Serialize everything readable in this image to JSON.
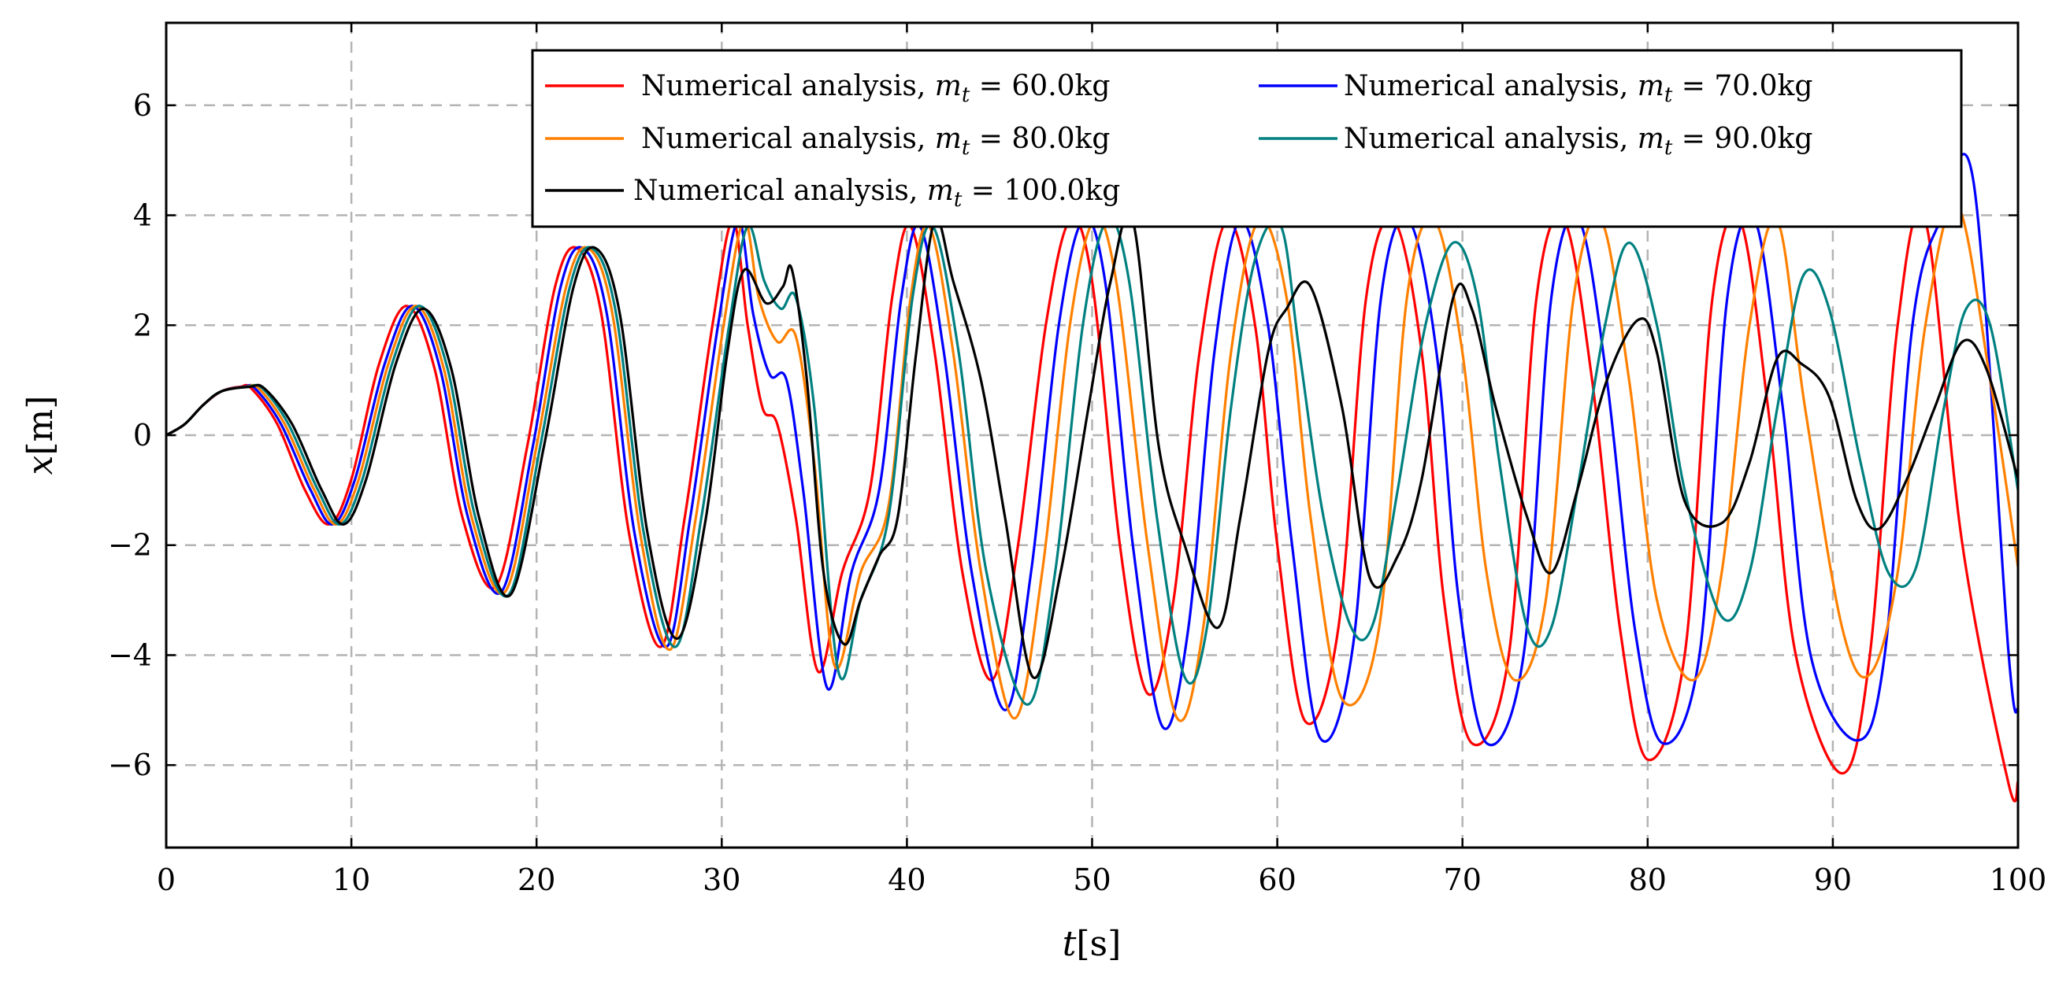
{
  "chart_data": {
    "type": "line",
    "title": "",
    "xlabel": {
      "var": "t",
      "unit": "[s]"
    },
    "ylabel": {
      "var": "x",
      "unit": "[m]"
    },
    "xlim": [
      0,
      100
    ],
    "ylim": [
      -7.5,
      7.5
    ],
    "grid": true,
    "legend_position": "top-right",
    "xticks": [
      0,
      10,
      20,
      30,
      40,
      50,
      60,
      70,
      80,
      90,
      100
    ],
    "xtick_labels": [
      "0",
      "10",
      "20",
      "30",
      "40",
      "50",
      "60",
      "70",
      "80",
      "90",
      "100"
    ],
    "yticks": [
      -6,
      -4,
      -2,
      0,
      2,
      4,
      6
    ],
    "ytick_labels": [
      "−6",
      "−4",
      "−2",
      "0",
      "2",
      "4",
      "6"
    ],
    "series": [
      {
        "name": "Numerical analysis, m_t = 60.0kg",
        "label_prefix": "Numerical analysis, ",
        "label_var": "m",
        "label_sub": "t",
        "label_value": " = 60.0kg",
        "color": "#ff0000",
        "x": [
          0,
          1,
          2,
          3,
          4,
          4.6,
          6,
          7.5,
          8.8,
          10,
          11.5,
          13,
          14.5,
          16,
          17.8,
          19.5,
          21,
          22.2,
          23.5,
          25,
          26.7,
          28,
          29.5,
          30.6,
          31.4,
          32.2,
          33,
          34,
          35.2,
          36.5,
          38,
          39.2,
          40.2,
          41.5,
          43,
          44.6,
          46,
          47.5,
          48.8,
          50,
          51.5,
          53,
          54.4,
          55.8,
          57.3,
          58.8,
          60,
          61.5,
          63.3,
          64.8,
          66.3,
          67.8,
          69,
          70.5,
          72.5,
          74,
          75.5,
          77,
          78.5,
          80,
          82,
          83.5,
          85,
          86.5,
          88,
          90.5,
          92,
          93.5,
          95,
          97,
          99.5,
          100
        ],
        "y": [
          0,
          0.2,
          0.55,
          0.8,
          0.88,
          0.85,
          0.2,
          -1.0,
          -1.62,
          -0.8,
          1.3,
          2.35,
          1.2,
          -1.5,
          -2.75,
          -0.2,
          2.7,
          3.4,
          2.2,
          -1.8,
          -3.85,
          -1.5,
          2.0,
          3.9,
          2.0,
          0.5,
          0.2,
          -1.5,
          -4.3,
          -2.5,
          -1.0,
          2.5,
          3.8,
          1.5,
          -2.5,
          -4.45,
          -2.0,
          2.0,
          3.9,
          2.8,
          -2.0,
          -4.7,
          -3.0,
          1.5,
          3.9,
          2.0,
          -2.0,
          -5.2,
          -3.5,
          2.5,
          3.9,
          1.5,
          -3.0,
          -5.6,
          -4.0,
          2.5,
          3.9,
          1.0,
          -3.5,
          -5.9,
          -4.0,
          2.5,
          3.9,
          0.5,
          -4.0,
          -6.15,
          -4.0,
          2.0,
          3.9,
          -2.0,
          -6.35,
          -6.3
        ]
      },
      {
        "name": "Numerical analysis, m_t = 70.0kg",
        "label_prefix": "Numerical analysis, ",
        "label_var": "m",
        "label_sub": "t",
        "label_value": " = 70.0kg",
        "color": "#0000ff",
        "x": [
          0,
          1,
          2,
          3,
          4.2,
          4.8,
          6.2,
          7.8,
          9,
          10.2,
          11.8,
          13.3,
          14.8,
          16.3,
          18.1,
          19.8,
          21.3,
          22.5,
          23.8,
          25.3,
          27,
          28.3,
          29.8,
          30.9,
          31.7,
          32.6,
          33.5,
          34.4,
          35.7,
          37,
          38.5,
          39.7,
          40.7,
          42,
          43.5,
          45.3,
          46.7,
          48.2,
          49.5,
          50.7,
          52.2,
          53.8,
          55.2,
          56.6,
          58,
          59.5,
          60.8,
          62.3,
          64.1,
          65.6,
          67.1,
          68.6,
          69.8,
          71.3,
          73.3,
          74.8,
          76.3,
          77.8,
          79.3,
          80.8,
          82.8,
          84.3,
          85.8,
          87.3,
          88.8,
          91.3,
          92.8,
          94.3,
          95.8,
          97.6,
          99.5,
          100
        ],
        "y": [
          0,
          0.2,
          0.55,
          0.8,
          0.88,
          0.85,
          0.2,
          -1.0,
          -1.62,
          -0.8,
          1.3,
          2.35,
          1.2,
          -1.5,
          -2.85,
          -0.2,
          2.7,
          3.4,
          2.2,
          -1.8,
          -3.85,
          -1.5,
          2.0,
          3.9,
          2.2,
          1.1,
          1.0,
          -1.0,
          -4.6,
          -2.5,
          -1.0,
          2.5,
          3.8,
          1.5,
          -2.5,
          -5.0,
          -2.5,
          2.0,
          3.9,
          2.8,
          -2.0,
          -5.3,
          -3.5,
          1.5,
          3.9,
          2.0,
          -2.0,
          -5.5,
          -3.8,
          2.5,
          3.9,
          1.5,
          -3.0,
          -5.6,
          -4.0,
          2.5,
          3.9,
          1.0,
          -3.5,
          -5.6,
          -4.0,
          2.5,
          3.9,
          0.5,
          -4.0,
          -5.55,
          -4.0,
          2.0,
          3.9,
          4.6,
          -4.0,
          -5.0
        ]
      },
      {
        "name": "Numerical analysis, m_t = 80.0kg",
        "label_prefix": "Numerical analysis, ",
        "label_var": "m",
        "label_sub": "t",
        "label_value": " = 80.0kg",
        "color": "#ff8000",
        "x": [
          0,
          1,
          2,
          3,
          4.3,
          5,
          6.4,
          8,
          9.2,
          10.4,
          12,
          13.5,
          15,
          16.5,
          18.3,
          20,
          21.6,
          22.8,
          24.1,
          25.6,
          27.2,
          28.6,
          30.1,
          31.2,
          32,
          33,
          34,
          35,
          36.1,
          37.5,
          39,
          40.2,
          41.2,
          42.5,
          44,
          45.8,
          47.3,
          48.8,
          50.1,
          51.3,
          53,
          54.6,
          56,
          57.5,
          59,
          60.5,
          61.8,
          63.5,
          65.5,
          67,
          68.5,
          70,
          71.3,
          72.8,
          74.5,
          76,
          77.5,
          79,
          80.5,
          82.5,
          84,
          85.5,
          87,
          88.5,
          90.5,
          92,
          93.5,
          95,
          96.7,
          98.5,
          100
        ],
        "y": [
          0,
          0.2,
          0.55,
          0.8,
          0.88,
          0.85,
          0.2,
          -1.0,
          -1.62,
          -0.8,
          1.3,
          2.35,
          1.2,
          -1.5,
          -2.85,
          -0.2,
          2.7,
          3.4,
          2.2,
          -1.8,
          -3.9,
          -1.5,
          2.0,
          3.9,
          2.5,
          1.7,
          1.8,
          -0.5,
          -4.2,
          -2.5,
          -1.3,
          2.5,
          3.8,
          1.5,
          -2.5,
          -5.15,
          -2.5,
          2.0,
          3.9,
          2.8,
          -2.0,
          -5.15,
          -3.5,
          1.5,
          3.9,
          2.5,
          -1.5,
          -4.8,
          -3.5,
          2.5,
          3.9,
          1.5,
          -2.5,
          -4.45,
          -3.0,
          2.5,
          3.9,
          1.0,
          -3.0,
          -4.45,
          -2.5,
          2.0,
          3.9,
          0.5,
          -3.5,
          -4.35,
          -2.5,
          2.0,
          4.2,
          1.0,
          -2.4
        ]
      },
      {
        "name": "Numerical analysis, m_t = 90.0kg",
        "label_prefix": "Numerical analysis, ",
        "label_var": "m",
        "label_sub": "t",
        "label_value": " = 90.0kg",
        "color": "#008080",
        "x": [
          0,
          1,
          2,
          3,
          4.4,
          5.2,
          6.6,
          8.2,
          9.4,
          10.6,
          12.2,
          13.7,
          15.2,
          16.7,
          18.5,
          20.2,
          21.8,
          23,
          24.3,
          25.8,
          27.5,
          28.9,
          30.4,
          31.4,
          32.3,
          33.2,
          34,
          35,
          36.3,
          37.5,
          39,
          40.3,
          41.4,
          42.8,
          44.3,
          46.5,
          48,
          49.5,
          50.8,
          52,
          53.5,
          55,
          56.2,
          57.5,
          58.8,
          60.2,
          61.2,
          62.5,
          64,
          65.2,
          66.5,
          68,
          69.5,
          70.8,
          72,
          73.5,
          74.8,
          76.2,
          77.7,
          79,
          80.5,
          82,
          84,
          85.5,
          87,
          88.4,
          89.8,
          91.5,
          93,
          94.5,
          96,
          97.2,
          98.5,
          100
        ],
        "y": [
          0,
          0.2,
          0.55,
          0.8,
          0.88,
          0.85,
          0.2,
          -1.0,
          -1.62,
          -0.8,
          1.3,
          2.35,
          1.2,
          -1.5,
          -2.9,
          -0.2,
          2.7,
          3.4,
          2.2,
          -1.8,
          -3.85,
          -1.5,
          2.0,
          3.8,
          2.8,
          2.3,
          2.5,
          0.5,
          -4.3,
          -3.0,
          -1.5,
          2.5,
          3.8,
          1.5,
          -2.5,
          -4.9,
          -2.5,
          2.0,
          3.9,
          2.8,
          -1.5,
          -4.4,
          -3.5,
          0.5,
          3.2,
          3.8,
          1.5,
          -1.5,
          -3.5,
          -3.4,
          -1.0,
          2.0,
          3.5,
          2.5,
          -0.5,
          -3.5,
          -3.5,
          -1.0,
          2.0,
          3.5,
          2.0,
          -1.0,
          -3.3,
          -2.5,
          0.5,
          2.9,
          2.3,
          -0.5,
          -2.5,
          -2.4,
          0.5,
          2.3,
          2.0,
          -1.0
        ]
      },
      {
        "name": "Numerical analysis, m_t = 100.0kg",
        "label_prefix": "Numerical analysis, ",
        "label_var": "m",
        "label_sub": "t",
        "label_value": " = 100.0kg",
        "color": "#000000",
        "x": [
          0,
          1,
          2,
          3,
          4.5,
          5.3,
          6.8,
          8.4,
          9.6,
          10.8,
          12.4,
          13.9,
          15.4,
          16.9,
          18.6,
          20.4,
          22,
          23.2,
          24.5,
          26,
          27.6,
          29.1,
          30.3,
          31.2,
          32.4,
          33.3,
          33.8,
          34.6,
          35.5,
          36.6,
          37.5,
          38.5,
          39.5,
          40.5,
          41.5,
          42.5,
          44,
          45.3,
          46.8,
          48.3,
          49.8,
          51,
          52.2,
          53.6,
          55,
          56.8,
          58,
          59.5,
          60.5,
          61.8,
          63.5,
          65,
          66.5,
          67.8,
          69.5,
          70.5,
          71.8,
          73.5,
          74.8,
          76.2,
          77.8,
          79.5,
          80.5,
          82,
          84,
          85.5,
          87,
          88.3,
          89.8,
          91.3,
          92.5,
          94,
          95.5,
          97,
          98.3,
          100
        ],
        "y": [
          0,
          0.2,
          0.55,
          0.8,
          0.88,
          0.85,
          0.2,
          -1.0,
          -1.62,
          -0.8,
          1.3,
          2.3,
          1.2,
          -1.5,
          -2.9,
          -0.2,
          2.7,
          3.4,
          2.2,
          -1.8,
          -3.7,
          -1.6,
          1.5,
          3.0,
          2.4,
          2.7,
          3.0,
          1.0,
          -2.5,
          -3.8,
          -3.0,
          -2.2,
          -1.5,
          1.5,
          3.9,
          2.8,
          1.0,
          -1.5,
          -4.4,
          -2.5,
          0.5,
          2.8,
          3.9,
          -0.2,
          -2.0,
          -3.5,
          -1.5,
          1.5,
          2.3,
          2.7,
          0.5,
          -2.6,
          -2.2,
          -0.8,
          2.5,
          2.3,
          0.5,
          -1.5,
          -2.5,
          -1.0,
          1.0,
          2.1,
          1.5,
          -1.2,
          -1.6,
          -0.5,
          1.4,
          1.3,
          0.7,
          -1.2,
          -1.7,
          -0.8,
          0.5,
          1.7,
          1.2,
          -0.8
        ]
      }
    ]
  }
}
